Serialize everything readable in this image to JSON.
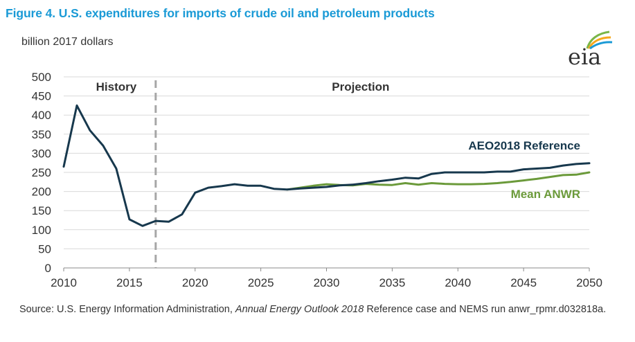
{
  "figure": {
    "title": "Figure 4. U.S. expenditures for imports of crude oil and petroleum products",
    "unit_label": "billion 2017 dollars",
    "logo_text": "eia",
    "source_prefix": "Source: U.S. Energy Information Administration, ",
    "source_italic": "Annual Energy Outlook 2018",
    "source_suffix": " Reference case and NEMS run anwr_rpmr.d032818a."
  },
  "colors": {
    "reference": "#17384d",
    "anwr": "#6b9a3a",
    "grid": "#d9d9d9",
    "divider": "#a6a6a6",
    "title": "#1a9ad6",
    "logo_leaf_1": "#7ab648",
    "logo_leaf_2": "#f5a81c",
    "logo_leaf_3": "#1a9ad6"
  },
  "chart_data": {
    "type": "line",
    "xlim": [
      2010,
      2050
    ],
    "ylim": [
      0,
      500
    ],
    "xticks": [
      2010,
      2015,
      2020,
      2025,
      2030,
      2035,
      2040,
      2045,
      2050
    ],
    "yticks": [
      0,
      50,
      100,
      150,
      200,
      250,
      300,
      350,
      400,
      450,
      500
    ],
    "grid": "horizontal",
    "divider_x": 2017,
    "region_labels": {
      "history": "History",
      "projection": "Projection"
    },
    "series": [
      {
        "name": "AEO2018 Reference",
        "x": [
          2010,
          2011,
          2012,
          2013,
          2014,
          2015,
          2016,
          2017,
          2018,
          2019,
          2020,
          2021,
          2022,
          2023,
          2024,
          2025,
          2026,
          2027,
          2028,
          2029,
          2030,
          2031,
          2032,
          2033,
          2034,
          2035,
          2036,
          2037,
          2038,
          2039,
          2040,
          2041,
          2042,
          2043,
          2044,
          2045,
          2046,
          2047,
          2048,
          2049,
          2050
        ],
        "y": [
          265,
          425,
          360,
          320,
          260,
          127,
          110,
          123,
          121,
          140,
          197,
          210,
          214,
          219,
          215,
          215,
          207,
          205,
          208,
          210,
          212,
          216,
          218,
          222,
          227,
          231,
          236,
          234,
          246,
          250,
          250,
          250,
          250,
          252,
          252,
          258,
          260,
          262,
          268,
          272,
          274
        ]
      },
      {
        "name": "Mean ANWR",
        "x": [
          2027,
          2028,
          2029,
          2030,
          2031,
          2032,
          2033,
          2034,
          2035,
          2036,
          2037,
          2038,
          2039,
          2040,
          2041,
          2042,
          2043,
          2044,
          2045,
          2046,
          2047,
          2048,
          2049,
          2050
        ],
        "y": [
          205,
          210,
          215,
          219,
          217,
          216,
          220,
          218,
          217,
          222,
          218,
          222,
          220,
          219,
          219,
          220,
          222,
          225,
          229,
          233,
          238,
          243,
          244,
          250
        ]
      }
    ]
  }
}
